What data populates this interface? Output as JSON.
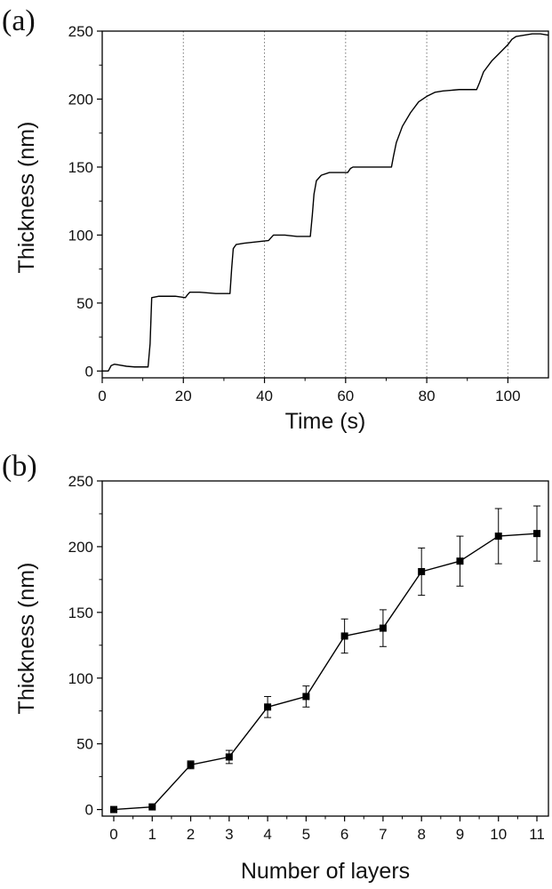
{
  "chart_data": [
    {
      "panel": "(a)",
      "type": "line",
      "xlabel": "Time (s)",
      "ylabel": "Thickness (nm)",
      "xlim": [
        0,
        110
      ],
      "ylim": [
        -5,
        250
      ],
      "xticks": [
        0,
        20,
        40,
        60,
        80,
        100
      ],
      "yticks": [
        0,
        50,
        100,
        150,
        200,
        250
      ],
      "vertical_reference_lines": [
        20,
        40,
        60,
        80,
        100
      ],
      "series": [
        {
          "name": "thickness",
          "x": [
            0,
            1.5,
            2.2,
            3,
            4,
            6,
            8,
            10,
            11.3,
            11.8,
            12.2,
            14,
            16,
            18,
            20.5,
            21,
            21.6,
            24,
            28,
            31.5,
            31.9,
            32.3,
            33,
            35,
            38,
            41,
            41.6,
            42.2,
            45,
            48,
            51.3,
            51.8,
            52.2,
            52.8,
            54,
            56,
            58,
            60.5,
            61.2,
            61.8,
            64,
            68,
            71.3,
            71.8,
            72.5,
            74,
            76,
            78,
            80,
            82,
            84,
            86,
            88,
            90,
            92.3,
            93,
            94,
            96,
            98,
            100,
            101,
            102,
            104,
            106,
            108,
            110
          ],
          "y": [
            0,
            0,
            4,
            5,
            4.5,
            3.5,
            3,
            3,
            3,
            20,
            54,
            55,
            55,
            55,
            54,
            56,
            58,
            58,
            57,
            57,
            75,
            90,
            93,
            94,
            95,
            96,
            98,
            100,
            100,
            99,
            99,
            115,
            130,
            140,
            144,
            146,
            146,
            146,
            149,
            150,
            150,
            150,
            150,
            158,
            168,
            180,
            190,
            198,
            202,
            205,
            206,
            206.5,
            207,
            207,
            207,
            212,
            220,
            228,
            234,
            240,
            244,
            246,
            247,
            248,
            248,
            247
          ]
        }
      ]
    },
    {
      "panel": "(b)",
      "type": "line",
      "markers": "square",
      "xlabel": "Number of layers",
      "ylabel": "Thickness (nm)",
      "xlim": [
        -0.3,
        11.3
      ],
      "ylim": [
        -5,
        250
      ],
      "xticks": [
        0,
        1,
        2,
        3,
        4,
        5,
        6,
        7,
        8,
        9,
        10,
        11
      ],
      "yticks": [
        0,
        50,
        100,
        150,
        200,
        250
      ],
      "series": [
        {
          "name": "thickness",
          "x": [
            0,
            1,
            2,
            3,
            4,
            5,
            6,
            7,
            8,
            9,
            10,
            11
          ],
          "y": [
            0,
            2,
            34,
            40,
            78,
            86,
            132,
            138,
            181,
            189,
            208,
            210
          ],
          "error": [
            0,
            0,
            3,
            5,
            8,
            8,
            13,
            14,
            18,
            19,
            21,
            21
          ]
        }
      ]
    }
  ]
}
